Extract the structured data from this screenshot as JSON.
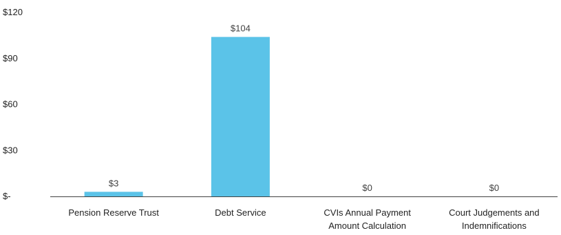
{
  "chart_data": {
    "type": "bar",
    "categories": [
      [
        "Pension Reserve Trust"
      ],
      [
        "Debt Service"
      ],
      [
        "CVIs Annual Payment",
        "Amount Calculation"
      ],
      [
        "Court Judgements and",
        "Indemnifications"
      ]
    ],
    "values": [
      3,
      104,
      0,
      0
    ],
    "data_labels": [
      "$3",
      "$104",
      "$0",
      "$0"
    ],
    "ylim": [
      0,
      120
    ],
    "yticks": [
      0,
      30,
      60,
      90,
      120
    ],
    "ytick_labels": [
      "$-",
      "$30",
      "$60",
      "$90",
      "$120"
    ],
    "bar_color": "#5BC3E8",
    "grid": false,
    "title": "",
    "xlabel": "",
    "ylabel": ""
  }
}
